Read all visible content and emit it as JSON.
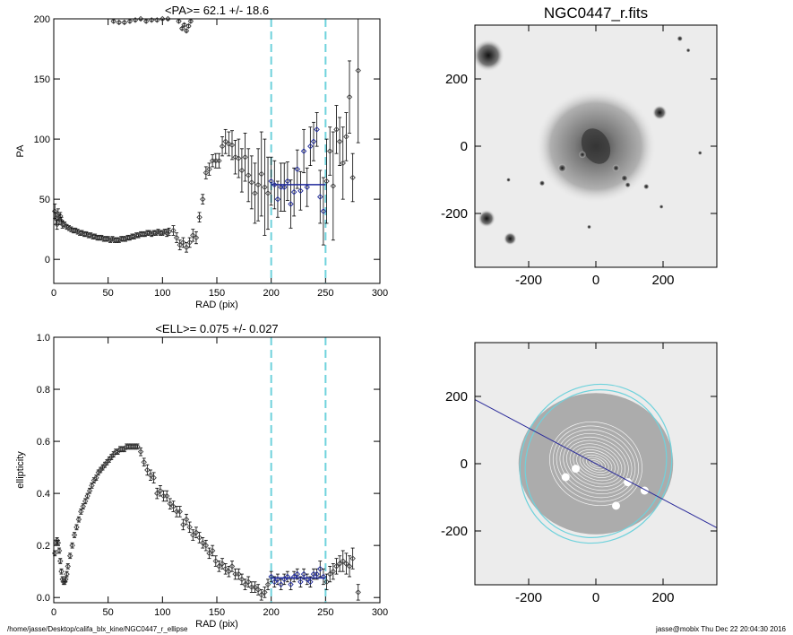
{
  "colors": {
    "points": "#444444",
    "errorbars": "#000000",
    "mean": "#1f2a9c",
    "range": "#6fd2dc",
    "major_axis": "#2a2a9a"
  },
  "chart_data": [
    {
      "type": "scatter",
      "title": "<PA>=  62.1 +/-  18.6",
      "xlabel": "RAD (pix)",
      "ylabel": "PA",
      "xlim": [
        0,
        300
      ],
      "ylim": [
        -20,
        200
      ],
      "xticks": [
        "0",
        "50",
        "100",
        "150",
        "200",
        "250",
        "300"
      ],
      "yticks": [
        "0",
        "50",
        "100",
        "150",
        "200"
      ],
      "range_lines": [
        200,
        250
      ],
      "mean_segment": {
        "x0": 200,
        "x1": 250,
        "y": 62.1
      },
      "points": [
        [
          1,
          40,
          6
        ],
        [
          2,
          34,
          5
        ],
        [
          3,
          29,
          4
        ],
        [
          4,
          37,
          5
        ],
        [
          5,
          33,
          4
        ],
        [
          6,
          36,
          3
        ],
        [
          7,
          32,
          3
        ],
        [
          8,
          29,
          3
        ],
        [
          10,
          29,
          2
        ],
        [
          12,
          27,
          2
        ],
        [
          14,
          26,
          2
        ],
        [
          16,
          25,
          2
        ],
        [
          18,
          24,
          2
        ],
        [
          20,
          24,
          2
        ],
        [
          22,
          23,
          2
        ],
        [
          24,
          22,
          2
        ],
        [
          26,
          22,
          2
        ],
        [
          28,
          21,
          2
        ],
        [
          30,
          21,
          2
        ],
        [
          32,
          20,
          2
        ],
        [
          34,
          20,
          2
        ],
        [
          36,
          19,
          2
        ],
        [
          38,
          19,
          2
        ],
        [
          40,
          18,
          2
        ],
        [
          42,
          18,
          2
        ],
        [
          44,
          18,
          2
        ],
        [
          46,
          17,
          2
        ],
        [
          48,
          17,
          2
        ],
        [
          50,
          17,
          2
        ],
        [
          52,
          16,
          2
        ],
        [
          54,
          17,
          2
        ],
        [
          56,
          16,
          2
        ],
        [
          58,
          16,
          2
        ],
        [
          60,
          16,
          2
        ],
        [
          62,
          17,
          2
        ],
        [
          64,
          17,
          2
        ],
        [
          66,
          17,
          2
        ],
        [
          68,
          18,
          2
        ],
        [
          70,
          18,
          2
        ],
        [
          72,
          19,
          2
        ],
        [
          74,
          19,
          2
        ],
        [
          76,
          20,
          2
        ],
        [
          78,
          20,
          2
        ],
        [
          80,
          21,
          2
        ],
        [
          82,
          21,
          2
        ],
        [
          84,
          21,
          2
        ],
        [
          86,
          22,
          2
        ],
        [
          88,
          22,
          2
        ],
        [
          90,
          21,
          2
        ],
        [
          92,
          22,
          2
        ],
        [
          94,
          22,
          2
        ],
        [
          96,
          23,
          2
        ],
        [
          98,
          22,
          2
        ],
        [
          100,
          22,
          2
        ],
        [
          102,
          23,
          2
        ],
        [
          104,
          22,
          3
        ],
        [
          106,
          23,
          3
        ],
        [
          110,
          24,
          4
        ],
        [
          113,
          18,
          4
        ],
        [
          116,
          12,
          4
        ],
        [
          119,
          14,
          4
        ],
        [
          122,
          10,
          4
        ],
        [
          125,
          14,
          4
        ],
        [
          128,
          20,
          5
        ],
        [
          131,
          18,
          5
        ],
        [
          134,
          35,
          4
        ],
        [
          137,
          50,
          4
        ],
        [
          140,
          72,
          5
        ],
        [
          143,
          75,
          5
        ],
        [
          146,
          82,
          5
        ],
        [
          149,
          82,
          6
        ],
        [
          152,
          82,
          6
        ],
        [
          155,
          94,
          8
        ],
        [
          158,
          98,
          10
        ],
        [
          161,
          96,
          10
        ],
        [
          164,
          95,
          12
        ],
        [
          167,
          85,
          14
        ],
        [
          170,
          84,
          16
        ],
        [
          173,
          74,
          18
        ],
        [
          176,
          85,
          20
        ],
        [
          179,
          70,
          22
        ],
        [
          182,
          64,
          22
        ],
        [
          185,
          55,
          25
        ],
        [
          188,
          62,
          30
        ],
        [
          191,
          71,
          35
        ],
        [
          194,
          60,
          40
        ],
        [
          197,
          55,
          30
        ],
        [
          200,
          65,
          20
        ],
        [
          203,
          62,
          20
        ],
        [
          206,
          50,
          15
        ],
        [
          209,
          60,
          20
        ],
        [
          212,
          60,
          20
        ],
        [
          215,
          65,
          16
        ],
        [
          218,
          46,
          20
        ],
        [
          221,
          56,
          20
        ],
        [
          224,
          75,
          16
        ],
        [
          227,
          57,
          16
        ],
        [
          230,
          90,
          18
        ],
        [
          233,
          60,
          16
        ],
        [
          236,
          94,
          16
        ],
        [
          239,
          98,
          16
        ],
        [
          242,
          108,
          14
        ],
        [
          245,
          52,
          22
        ],
        [
          248,
          40,
          28
        ],
        [
          251,
          65,
          35
        ],
        [
          254,
          90,
          20
        ],
        [
          257,
          61,
          45
        ],
        [
          260,
          108,
          20
        ],
        [
          263,
          98,
          20
        ],
        [
          266,
          80,
          30
        ],
        [
          269,
          102,
          20
        ],
        [
          272,
          135,
          30
        ],
        [
          275,
          68,
          20
        ],
        [
          280,
          157,
          60
        ]
      ],
      "wrap_points": [
        [
          55,
          198
        ],
        [
          60,
          197
        ],
        [
          65,
          197
        ],
        [
          70,
          198
        ],
        [
          75,
          199
        ],
        [
          80,
          200
        ],
        [
          85,
          198
        ],
        [
          90,
          199
        ],
        [
          95,
          199
        ],
        [
          100,
          200
        ],
        [
          105,
          200
        ],
        [
          115,
          198
        ],
        [
          118,
          192
        ],
        [
          120,
          195
        ],
        [
          122,
          190
        ],
        [
          124,
          194
        ],
        [
          126,
          198
        ]
      ]
    },
    {
      "type": "scatter",
      "title": "<ELL>= 0.075 +/-  0.027",
      "xlabel": "RAD (pix)",
      "ylabel": "ellipticity",
      "xlim": [
        0,
        300
      ],
      "ylim": [
        -0.02,
        1.0
      ],
      "xticks": [
        "0",
        "50",
        "100",
        "150",
        "200",
        "250",
        "300"
      ],
      "yticks": [
        "0.0",
        "0.2",
        "0.4",
        "0.6",
        "0.8",
        "1.0"
      ],
      "range_lines": [
        200,
        250
      ],
      "mean_segment": {
        "x0": 200,
        "x1": 250,
        "y": 0.075
      },
      "points": [
        [
          1,
          0.17,
          0.01
        ],
        [
          2,
          0.21,
          0.01
        ],
        [
          3,
          0.22,
          0.01
        ],
        [
          4,
          0.21,
          0.01
        ],
        [
          5,
          0.18,
          0.01
        ],
        [
          6,
          0.14,
          0.01
        ],
        [
          7,
          0.1,
          0.01
        ],
        [
          8,
          0.07,
          0.01
        ],
        [
          9,
          0.06,
          0.01
        ],
        [
          10,
          0.06,
          0.01
        ],
        [
          11,
          0.07,
          0.01
        ],
        [
          12,
          0.09,
          0.01
        ],
        [
          13,
          0.12,
          0.01
        ],
        [
          15,
          0.16,
          0.01
        ],
        [
          17,
          0.2,
          0.01
        ],
        [
          19,
          0.24,
          0.01
        ],
        [
          21,
          0.27,
          0.01
        ],
        [
          23,
          0.3,
          0.01
        ],
        [
          25,
          0.33,
          0.01
        ],
        [
          27,
          0.35,
          0.01
        ],
        [
          29,
          0.37,
          0.01
        ],
        [
          31,
          0.39,
          0.01
        ],
        [
          33,
          0.41,
          0.01
        ],
        [
          35,
          0.43,
          0.01
        ],
        [
          37,
          0.45,
          0.01
        ],
        [
          39,
          0.46,
          0.01
        ],
        [
          41,
          0.48,
          0.01
        ],
        [
          43,
          0.49,
          0.01
        ],
        [
          45,
          0.5,
          0.01
        ],
        [
          47,
          0.51,
          0.01
        ],
        [
          49,
          0.52,
          0.01
        ],
        [
          51,
          0.53,
          0.01
        ],
        [
          53,
          0.54,
          0.01
        ],
        [
          55,
          0.55,
          0.01
        ],
        [
          57,
          0.56,
          0.01
        ],
        [
          59,
          0.56,
          0.01
        ],
        [
          61,
          0.57,
          0.01
        ],
        [
          63,
          0.57,
          0.01
        ],
        [
          65,
          0.57,
          0.01
        ],
        [
          67,
          0.58,
          0.01
        ],
        [
          69,
          0.58,
          0.01
        ],
        [
          71,
          0.58,
          0.01
        ],
        [
          73,
          0.58,
          0.01
        ],
        [
          75,
          0.58,
          0.01
        ],
        [
          77,
          0.58,
          0.01
        ],
        [
          80,
          0.56,
          0.015
        ],
        [
          83,
          0.52,
          0.015
        ],
        [
          86,
          0.49,
          0.02
        ],
        [
          89,
          0.47,
          0.02
        ],
        [
          92,
          0.46,
          0.02
        ],
        [
          95,
          0.4,
          0.02
        ],
        [
          98,
          0.41,
          0.02
        ],
        [
          101,
          0.39,
          0.02
        ],
        [
          104,
          0.39,
          0.02
        ],
        [
          107,
          0.36,
          0.02
        ],
        [
          110,
          0.35,
          0.02
        ],
        [
          113,
          0.33,
          0.02
        ],
        [
          116,
          0.33,
          0.02
        ],
        [
          119,
          0.28,
          0.02
        ],
        [
          122,
          0.3,
          0.02
        ],
        [
          125,
          0.27,
          0.02
        ],
        [
          128,
          0.24,
          0.02
        ],
        [
          131,
          0.25,
          0.02
        ],
        [
          134,
          0.23,
          0.02
        ],
        [
          137,
          0.21,
          0.02
        ],
        [
          140,
          0.2,
          0.02
        ],
        [
          143,
          0.17,
          0.02
        ],
        [
          146,
          0.18,
          0.02
        ],
        [
          149,
          0.14,
          0.02
        ],
        [
          152,
          0.12,
          0.02
        ],
        [
          155,
          0.13,
          0.02
        ],
        [
          158,
          0.11,
          0.02
        ],
        [
          161,
          0.1,
          0.02
        ],
        [
          164,
          0.12,
          0.02
        ],
        [
          167,
          0.09,
          0.02
        ],
        [
          170,
          0.09,
          0.02
        ],
        [
          173,
          0.07,
          0.02
        ],
        [
          176,
          0.05,
          0.02
        ],
        [
          179,
          0.06,
          0.02
        ],
        [
          182,
          0.04,
          0.02
        ],
        [
          185,
          0.04,
          0.02
        ],
        [
          188,
          0.03,
          0.02
        ],
        [
          191,
          0.01,
          0.02
        ],
        [
          194,
          0.02,
          0.02
        ],
        [
          197,
          0.05,
          0.02
        ],
        [
          200,
          0.08,
          0.02
        ],
        [
          203,
          0.06,
          0.02
        ],
        [
          206,
          0.07,
          0.02
        ],
        [
          209,
          0.05,
          0.02
        ],
        [
          212,
          0.07,
          0.02
        ],
        [
          215,
          0.08,
          0.02
        ],
        [
          218,
          0.05,
          0.02
        ],
        [
          221,
          0.08,
          0.02
        ],
        [
          224,
          0.09,
          0.02
        ],
        [
          227,
          0.06,
          0.02
        ],
        [
          230,
          0.09,
          0.02
        ],
        [
          233,
          0.07,
          0.02
        ],
        [
          236,
          0.06,
          0.02
        ],
        [
          239,
          0.09,
          0.02
        ],
        [
          242,
          0.09,
          0.02
        ],
        [
          245,
          0.11,
          0.03
        ],
        [
          248,
          0.08,
          0.03
        ],
        [
          251,
          0.06,
          0.03
        ],
        [
          254,
          0.09,
          0.03
        ],
        [
          257,
          0.1,
          0.03
        ],
        [
          260,
          0.12,
          0.03
        ],
        [
          263,
          0.13,
          0.03
        ],
        [
          266,
          0.14,
          0.04
        ],
        [
          269,
          0.13,
          0.04
        ],
        [
          272,
          0.12,
          0.04
        ],
        [
          275,
          0.15,
          0.04
        ],
        [
          280,
          0.02,
          0.03
        ]
      ]
    },
    {
      "type": "image",
      "title": "NGC0447_r.fits",
      "xticks": [
        "-200",
        "0",
        "200"
      ],
      "yticks": [
        "200",
        "0",
        "-200"
      ],
      "xlim": [
        -360,
        360
      ],
      "ylim": [
        -360,
        360
      ],
      "stars": [
        [
          -320,
          270,
          22
        ],
        [
          -325,
          -215,
          12
        ],
        [
          -255,
          -275,
          9
        ],
        [
          190,
          100,
          10
        ],
        [
          -100,
          -65,
          6
        ],
        [
          -40,
          -25,
          5
        ],
        [
          60,
          -65,
          5
        ],
        [
          85,
          -95,
          5
        ],
        [
          95,
          -115,
          4
        ],
        [
          150,
          -120,
          4
        ],
        [
          -160,
          -110,
          4
        ],
        [
          250,
          320,
          4
        ],
        [
          275,
          285,
          3
        ],
        [
          195,
          -180,
          3
        ],
        [
          -20,
          -240,
          3
        ],
        [
          -260,
          -100,
          3
        ],
        [
          310,
          -20,
          3
        ]
      ]
    },
    {
      "type": "image",
      "xticks": [
        "-200",
        "0",
        "200"
      ],
      "yticks": [
        "200",
        "0",
        "-200"
      ],
      "xlim": [
        -360,
        360
      ],
      "ylim": [
        -360,
        360
      ],
      "position_angle": 62.1,
      "ellipse_radius": 240,
      "ellipticity": 0.075
    }
  ],
  "footer": {
    "path": "/home/jasse/Desktop/califa_blx_kine/NGC0447_r_ellipse",
    "stamp": "jasse@mobix  Thu Dec 22 20:04:30 2016"
  }
}
